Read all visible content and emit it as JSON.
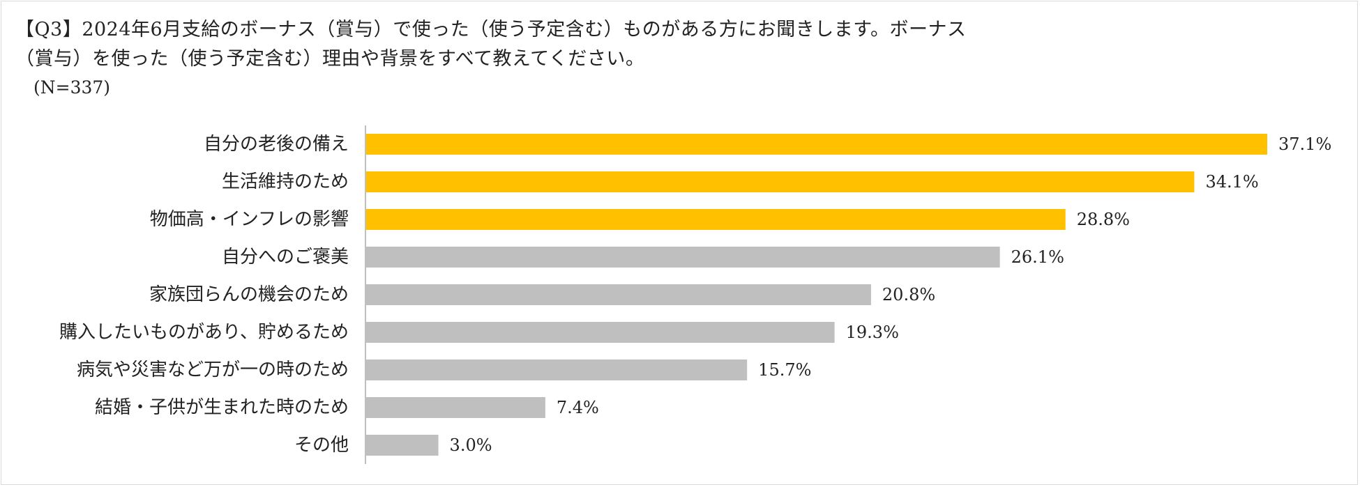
{
  "title": {
    "line1": "【Q3】2024年6月支給のボーナス（賞与）で使った（使う予定含む）ものがある方にお聞きします。ボーナス",
    "line2": "（賞与）を使った（使う予定含む）理由や背景をすべて教えてください。",
    "n": "(N=337)"
  },
  "chart_data": {
    "type": "bar",
    "orientation": "horizontal",
    "categories": [
      "自分の老後の備え",
      "生活維持のため",
      "物価高・インフレの影響",
      "自分へのご褒美",
      "家族団らんの機会のため",
      "購入したいものがあり、貯めるため",
      "病気や災害など万が一の時のため",
      "結婚・子供が生まれた時のため",
      "その他"
    ],
    "values": [
      37.1,
      34.1,
      28.8,
      26.1,
      20.8,
      19.3,
      15.7,
      7.4,
      3.0
    ],
    "value_labels": [
      "37.1%",
      "34.1%",
      "28.8%",
      "26.1%",
      "20.8%",
      "19.3%",
      "15.7%",
      "7.4%",
      "3.0%"
    ],
    "highlight_count": 3,
    "colors": {
      "highlight": "#FFC000",
      "default": "#BFBFBF",
      "axis": "#BFBFBF"
    },
    "xlim": [
      0,
      40
    ],
    "grid": false,
    "legend": "none"
  }
}
